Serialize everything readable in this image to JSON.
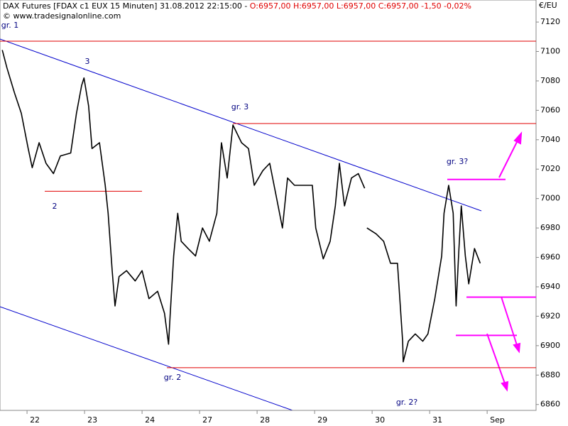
{
  "header": {
    "instrument": "DAX Futures [FDAX c1 EUX  15 Minuten] 31.08.2012 22:15:00 - ",
    "quote": "O:6957,00 H:6957,00 L:6957,00 C:6957,00 -1,50 -0,02%",
    "copyright": "© www.tradesignalonline.com"
  },
  "chart_data": {
    "type": "line",
    "y_axis_label": "€/EU",
    "x": [
      -0.43,
      -0.35,
      -0.22,
      -0.1,
      0.02,
      0.09,
      0.21,
      0.33,
      0.46,
      0.58,
      0.76,
      0.86,
      0.95,
      0.99,
      1.07,
      1.13,
      1.26,
      1.36,
      1.41,
      1.48,
      1.53,
      1.6,
      1.73,
      1.88,
      2.0,
      2.12,
      2.27,
      2.39,
      2.46,
      2.49,
      2.55,
      2.62,
      2.68,
      2.8,
      2.93,
      3.05,
      3.17,
      3.3,
      3.38,
      3.48,
      3.58,
      3.73,
      3.85,
      3.95,
      4.1,
      4.22,
      4.34,
      4.44,
      4.53,
      4.65,
      4.78,
      4.96,
      5.02,
      5.15,
      5.27,
      5.36,
      5.43,
      5.52,
      5.64,
      5.76,
      5.87,
      5.89,
      5.91,
      6.07,
      6.2,
      6.32,
      6.44,
      6.53,
      6.54,
      6.63,
      6.75,
      6.88,
      6.97,
      7.09,
      7.21,
      7.25,
      7.33,
      7.41,
      7.46,
      7.51,
      7.55,
      7.62,
      7.68,
      7.78,
      7.88
    ],
    "values": [
      7101,
      7089,
      7072,
      7058,
      7034,
      7021,
      7038,
      7024,
      7017,
      7029,
      7031,
      7058,
      7077,
      7082,
      7063,
      7034,
      7038,
      7009,
      6990,
      6951,
      6927,
      6947,
      6951,
      6944,
      6951,
      6932,
      6937,
      6922,
      6901,
      6922,
      6961,
      6990,
      6971,
      6966,
      6961,
      6980,
      6971,
      6990,
      7038,
      7014,
      7050,
      7038,
      7034,
      7009,
      7019,
      7024,
      7000,
      6980,
      7014,
      7009,
      7009,
      7009,
      6980,
      6959,
      6971,
      6995,
      7024,
      6995,
      7014,
      7017,
      7007,
      null,
      6980,
      6976,
      6971,
      6956,
      6956,
      6903,
      6889,
      6903,
      6908,
      6903,
      6908,
      6932,
      6961,
      6990,
      7009,
      6990,
      6927,
      6966,
      6995,
      6961,
      6942,
      6966,
      6956
    ],
    "color": "#000000",
    "xlim": [
      -0.47,
      8.85
    ],
    "xticks": [
      {
        "value": 0,
        "label": "22"
      },
      {
        "value": 1,
        "label": "23"
      },
      {
        "value": 2,
        "label": "24"
      },
      {
        "value": 3,
        "label": "27"
      },
      {
        "value": 4,
        "label": "28"
      },
      {
        "value": 5,
        "label": "29"
      },
      {
        "value": 6,
        "label": "30"
      },
      {
        "value": 7,
        "label": "31"
      },
      {
        "value": 8,
        "label": "Sep"
      }
    ],
    "ylim": [
      6856,
      7135
    ],
    "yticks": [
      6860,
      6880,
      6900,
      6920,
      6940,
      6960,
      6980,
      7000,
      7020,
      7040,
      7060,
      7080,
      7100,
      7120
    ],
    "levels": [
      {
        "value": 7107,
        "color": "#e00000"
      },
      {
        "value": 7051,
        "color": "#e00000"
      },
      {
        "value": 7005,
        "color": "#e00000"
      },
      {
        "value": 6885,
        "color": "#e00000"
      },
      {
        "value": 7013,
        "color": "#ff00ff"
      },
      {
        "value": 6933,
        "color": "#ff00ff"
      },
      {
        "value": 6907,
        "color": "#ff00ff"
      }
    ],
    "annotations": [
      "gr. 1",
      "3",
      "2",
      "gr. 3",
      "gr. 2",
      "gr. 2?",
      "gr. 3?"
    ]
  }
}
